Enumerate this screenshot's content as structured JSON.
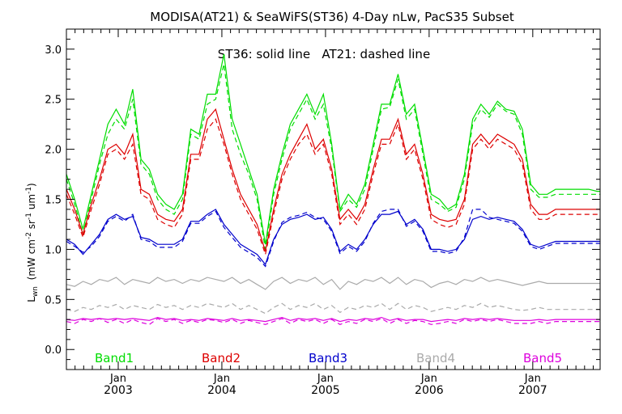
{
  "chart_data": {
    "type": "line",
    "title": "MODISA(AT21) & SeaWiFS(ST36) 4-Day nLw, PacS35 Subset",
    "annotation": "ST36: solid line   AT21: dashed line",
    "ylabel": "L",
    "ylabel_sub": "wn",
    "ylabel_units": "(mW cm",
    "ylabel_units_sup1": "-2",
    "ylabel_units_mid": " sr",
    "ylabel_units_sup2": "-1",
    "ylabel_units_end": " um",
    "ylabel_units_sup3": "-1",
    "ylabel_units_close": ")",
    "ylim": [
      -0.2,
      3.2
    ],
    "yticks": [
      {
        "value": 0.0,
        "label": "0.0"
      },
      {
        "value": 0.5,
        "label": "0.5"
      },
      {
        "value": 1.0,
        "label": "1.0"
      },
      {
        "value": 1.5,
        "label": "1.5"
      },
      {
        "value": 2.0,
        "label": "2.0"
      },
      {
        "value": 2.5,
        "label": "2.5"
      },
      {
        "value": 3.0,
        "label": "3.0"
      }
    ],
    "xlim": [
      2002.5,
      2007.65
    ],
    "xticks": [
      {
        "value": 2003.0,
        "month": "Jan",
        "year": "2003"
      },
      {
        "value": 2004.0,
        "month": "Jan",
        "year": "2004"
      },
      {
        "value": 2005.0,
        "month": "Jan",
        "year": "2005"
      },
      {
        "value": 2006.0,
        "month": "Jan",
        "year": "2006"
      },
      {
        "value": 2007.0,
        "month": "Jan",
        "year": "2007"
      }
    ],
    "x": [
      2002.5,
      2002.58,
      2002.66,
      2002.74,
      2002.82,
      2002.9,
      2002.98,
      2003.06,
      2003.14,
      2003.22,
      2003.3,
      2003.38,
      2003.46,
      2003.54,
      2003.62,
      2003.7,
      2003.78,
      2003.86,
      2003.94,
      2004.02,
      2004.1,
      2004.18,
      2004.26,
      2004.34,
      2004.42,
      2004.5,
      2004.58,
      2004.66,
      2004.74,
      2004.82,
      2004.9,
      2004.98,
      2005.06,
      2005.14,
      2005.22,
      2005.3,
      2005.38,
      2005.46,
      2005.54,
      2005.62,
      2005.7,
      2005.78,
      2005.86,
      2005.94,
      2006.02,
      2006.1,
      2006.18,
      2006.26,
      2006.34,
      2006.42,
      2006.5,
      2006.58,
      2006.66,
      2006.74,
      2006.82,
      2006.9,
      2006.98,
      2007.06,
      2007.14,
      2007.22,
      2007.3,
      2007.38,
      2007.46,
      2007.54,
      2007.62,
      2007.65
    ],
    "series": [
      {
        "name": "Band1",
        "band": "Band1",
        "sensor": "ST36",
        "style": "solid",
        "color": "#00dd00",
        "values": [
          1.75,
          1.5,
          1.2,
          1.55,
          1.9,
          2.25,
          2.4,
          2.25,
          2.6,
          1.9,
          1.8,
          1.55,
          1.45,
          1.4,
          1.55,
          2.2,
          2.15,
          2.55,
          2.55,
          2.95,
          2.3,
          2.05,
          1.8,
          1.55,
          1.05,
          1.6,
          1.95,
          2.25,
          2.4,
          2.55,
          2.35,
          2.55,
          2.05,
          1.4,
          1.55,
          1.45,
          1.65,
          2.05,
          2.45,
          2.45,
          2.75,
          2.35,
          2.45,
          2.0,
          1.55,
          1.5,
          1.4,
          1.45,
          1.75,
          2.3,
          2.45,
          2.35,
          2.48,
          2.4,
          2.38,
          2.2,
          1.65,
          1.55,
          1.55,
          1.6,
          1.6,
          1.6,
          1.6,
          1.6,
          1.58,
          1.58
        ]
      },
      {
        "name": "Band1",
        "band": "Band1",
        "sensor": "AT21",
        "style": "dashed",
        "color": "#00dd00",
        "values": [
          1.7,
          1.45,
          1.15,
          1.5,
          1.85,
          2.15,
          2.3,
          2.2,
          2.5,
          1.85,
          1.75,
          1.5,
          1.4,
          1.35,
          1.5,
          2.15,
          2.1,
          2.45,
          2.5,
          2.85,
          2.2,
          1.95,
          1.75,
          1.5,
          1.0,
          1.55,
          1.9,
          2.2,
          2.35,
          2.5,
          2.3,
          2.45,
          2.0,
          1.38,
          1.5,
          1.42,
          1.6,
          2.0,
          2.4,
          2.42,
          2.7,
          2.3,
          2.4,
          1.95,
          1.5,
          1.45,
          1.38,
          1.42,
          1.7,
          2.25,
          2.4,
          2.32,
          2.45,
          2.38,
          2.35,
          2.15,
          1.6,
          1.52,
          1.52,
          1.55,
          1.55,
          1.55,
          1.55,
          1.55,
          1.55,
          1.55
        ]
      },
      {
        "name": "Band2",
        "band": "Band2",
        "sensor": "ST36",
        "style": "solid",
        "color": "#dd0000",
        "values": [
          1.6,
          1.4,
          1.15,
          1.45,
          1.7,
          2.0,
          2.05,
          1.95,
          2.15,
          1.6,
          1.55,
          1.35,
          1.3,
          1.28,
          1.4,
          1.95,
          1.95,
          2.3,
          2.4,
          2.1,
          1.8,
          1.55,
          1.4,
          1.25,
          0.98,
          1.4,
          1.75,
          1.95,
          2.1,
          2.25,
          2.0,
          2.1,
          1.8,
          1.3,
          1.4,
          1.3,
          1.45,
          1.8,
          2.1,
          2.1,
          2.3,
          1.95,
          2.05,
          1.75,
          1.35,
          1.3,
          1.28,
          1.3,
          1.5,
          2.05,
          2.15,
          2.05,
          2.15,
          2.1,
          2.05,
          1.9,
          1.45,
          1.35,
          1.35,
          1.4,
          1.4,
          1.4,
          1.4,
          1.4,
          1.4,
          1.4
        ]
      },
      {
        "name": "Band2",
        "band": "Band2",
        "sensor": "AT21",
        "style": "dashed",
        "color": "#dd0000",
        "values": [
          1.55,
          1.35,
          1.12,
          1.4,
          1.65,
          1.95,
          2.0,
          1.9,
          2.05,
          1.55,
          1.5,
          1.3,
          1.25,
          1.22,
          1.35,
          1.9,
          1.9,
          2.2,
          2.3,
          2.05,
          1.75,
          1.5,
          1.35,
          1.2,
          0.95,
          1.35,
          1.7,
          1.9,
          2.05,
          2.15,
          1.95,
          2.05,
          1.75,
          1.25,
          1.35,
          1.25,
          1.4,
          1.75,
          2.05,
          2.05,
          2.25,
          1.9,
          2.0,
          1.7,
          1.3,
          1.25,
          1.22,
          1.25,
          1.45,
          2.0,
          2.1,
          2.0,
          2.1,
          2.05,
          2.0,
          1.85,
          1.4,
          1.3,
          1.3,
          1.35,
          1.35,
          1.35,
          1.35,
          1.35,
          1.35,
          1.35
        ]
      },
      {
        "name": "Band3",
        "band": "Band3",
        "sensor": "ST36",
        "style": "solid",
        "color": "#0000cc",
        "values": [
          1.1,
          1.05,
          0.95,
          1.05,
          1.15,
          1.3,
          1.35,
          1.3,
          1.33,
          1.12,
          1.1,
          1.05,
          1.05,
          1.05,
          1.1,
          1.28,
          1.28,
          1.35,
          1.4,
          1.25,
          1.15,
          1.05,
          1.0,
          0.95,
          0.85,
          1.1,
          1.25,
          1.3,
          1.32,
          1.35,
          1.3,
          1.32,
          1.2,
          0.98,
          1.05,
          1.0,
          1.1,
          1.25,
          1.35,
          1.35,
          1.38,
          1.25,
          1.3,
          1.2,
          1.0,
          1.0,
          0.98,
          1.0,
          1.1,
          1.3,
          1.33,
          1.3,
          1.32,
          1.3,
          1.28,
          1.2,
          1.05,
          1.02,
          1.05,
          1.08,
          1.08,
          1.08,
          1.08,
          1.08,
          1.08,
          1.08
        ]
      },
      {
        "name": "Band3",
        "band": "Band3",
        "sensor": "AT21",
        "style": "dashed",
        "color": "#0000cc",
        "values": [
          1.08,
          1.03,
          0.97,
          1.03,
          1.13,
          1.28,
          1.33,
          1.28,
          1.35,
          1.1,
          1.08,
          1.02,
          1.02,
          1.02,
          1.08,
          1.26,
          1.26,
          1.33,
          1.38,
          1.22,
          1.12,
          1.02,
          0.97,
          0.92,
          0.83,
          1.08,
          1.27,
          1.32,
          1.34,
          1.37,
          1.32,
          1.3,
          1.18,
          0.96,
          1.03,
          0.98,
          1.08,
          1.26,
          1.38,
          1.4,
          1.4,
          1.23,
          1.28,
          1.18,
          0.98,
          0.98,
          0.96,
          0.98,
          1.12,
          1.4,
          1.4,
          1.32,
          1.3,
          1.28,
          1.26,
          1.18,
          1.03,
          1.0,
          1.03,
          1.06,
          1.06,
          1.06,
          1.06,
          1.06,
          1.06,
          1.06
        ]
      },
      {
        "name": "Band4",
        "band": "Band4",
        "sensor": "ST36",
        "style": "solid",
        "color": "#aaaaaa",
        "values": [
          0.65,
          0.63,
          0.68,
          0.65,
          0.7,
          0.68,
          0.72,
          0.65,
          0.7,
          0.68,
          0.66,
          0.72,
          0.68,
          0.7,
          0.66,
          0.7,
          0.68,
          0.72,
          0.7,
          0.68,
          0.72,
          0.66,
          0.7,
          0.65,
          0.6,
          0.68,
          0.72,
          0.66,
          0.7,
          0.68,
          0.72,
          0.65,
          0.7,
          0.6,
          0.68,
          0.65,
          0.7,
          0.68,
          0.72,
          0.66,
          0.72,
          0.65,
          0.7,
          0.68,
          0.62,
          0.66,
          0.68,
          0.65,
          0.7,
          0.68,
          0.72,
          0.68,
          0.7,
          0.68,
          0.66,
          0.64,
          0.66,
          0.68,
          0.66,
          0.66,
          0.66,
          0.66,
          0.66,
          0.66,
          0.66,
          0.66
        ]
      },
      {
        "name": "Band4",
        "band": "Band4",
        "sensor": "AT21",
        "style": "dashed",
        "color": "#aaaaaa",
        "values": [
          0.4,
          0.38,
          0.42,
          0.4,
          0.44,
          0.42,
          0.45,
          0.4,
          0.44,
          0.42,
          0.4,
          0.45,
          0.42,
          0.44,
          0.4,
          0.44,
          0.42,
          0.46,
          0.44,
          0.42,
          0.46,
          0.4,
          0.44,
          0.4,
          0.36,
          0.42,
          0.46,
          0.4,
          0.44,
          0.42,
          0.46,
          0.4,
          0.44,
          0.37,
          0.42,
          0.4,
          0.44,
          0.42,
          0.46,
          0.4,
          0.46,
          0.4,
          0.44,
          0.42,
          0.38,
          0.4,
          0.42,
          0.4,
          0.44,
          0.42,
          0.46,
          0.42,
          0.44,
          0.42,
          0.4,
          0.39,
          0.4,
          0.42,
          0.4,
          0.4,
          0.4,
          0.4,
          0.4,
          0.4,
          0.4,
          0.4
        ]
      },
      {
        "name": "Band5",
        "band": "Band5",
        "sensor": "ST36",
        "style": "solid",
        "color": "#dd00dd",
        "values": [
          0.3,
          0.29,
          0.31,
          0.3,
          0.31,
          0.3,
          0.31,
          0.3,
          0.31,
          0.3,
          0.29,
          0.32,
          0.3,
          0.31,
          0.29,
          0.3,
          0.29,
          0.31,
          0.3,
          0.29,
          0.31,
          0.29,
          0.3,
          0.29,
          0.28,
          0.3,
          0.32,
          0.29,
          0.31,
          0.3,
          0.31,
          0.29,
          0.31,
          0.28,
          0.3,
          0.29,
          0.31,
          0.3,
          0.32,
          0.29,
          0.31,
          0.29,
          0.3,
          0.3,
          0.28,
          0.29,
          0.3,
          0.29,
          0.31,
          0.3,
          0.31,
          0.3,
          0.31,
          0.3,
          0.29,
          0.29,
          0.29,
          0.3,
          0.29,
          0.3,
          0.3,
          0.3,
          0.3,
          0.3,
          0.3,
          0.3
        ]
      },
      {
        "name": "Band5",
        "band": "Band5",
        "sensor": "AT21",
        "style": "dashed",
        "color": "#dd00dd",
        "values": [
          0.28,
          0.26,
          0.3,
          0.28,
          0.31,
          0.27,
          0.3,
          0.26,
          0.3,
          0.27,
          0.25,
          0.31,
          0.28,
          0.3,
          0.26,
          0.29,
          0.27,
          0.3,
          0.29,
          0.27,
          0.3,
          0.26,
          0.29,
          0.27,
          0.25,
          0.28,
          0.31,
          0.26,
          0.3,
          0.28,
          0.3,
          0.26,
          0.3,
          0.25,
          0.28,
          0.26,
          0.3,
          0.28,
          0.31,
          0.26,
          0.3,
          0.26,
          0.29,
          0.28,
          0.25,
          0.26,
          0.28,
          0.26,
          0.3,
          0.28,
          0.3,
          0.28,
          0.3,
          0.28,
          0.26,
          0.26,
          0.26,
          0.28,
          0.26,
          0.28,
          0.28,
          0.28,
          0.28,
          0.28,
          0.28,
          0.28
        ]
      }
    ],
    "legend": [
      {
        "label": "Band1",
        "color": "#00dd00"
      },
      {
        "label": "Band2",
        "color": "#dd0000"
      },
      {
        "label": "Band3",
        "color": "#0000cc"
      },
      {
        "label": "Band4",
        "color": "#aaaaaa"
      },
      {
        "label": "Band5",
        "color": "#dd00dd"
      }
    ],
    "legend_placement": "bottom-inside",
    "grid": false
  }
}
